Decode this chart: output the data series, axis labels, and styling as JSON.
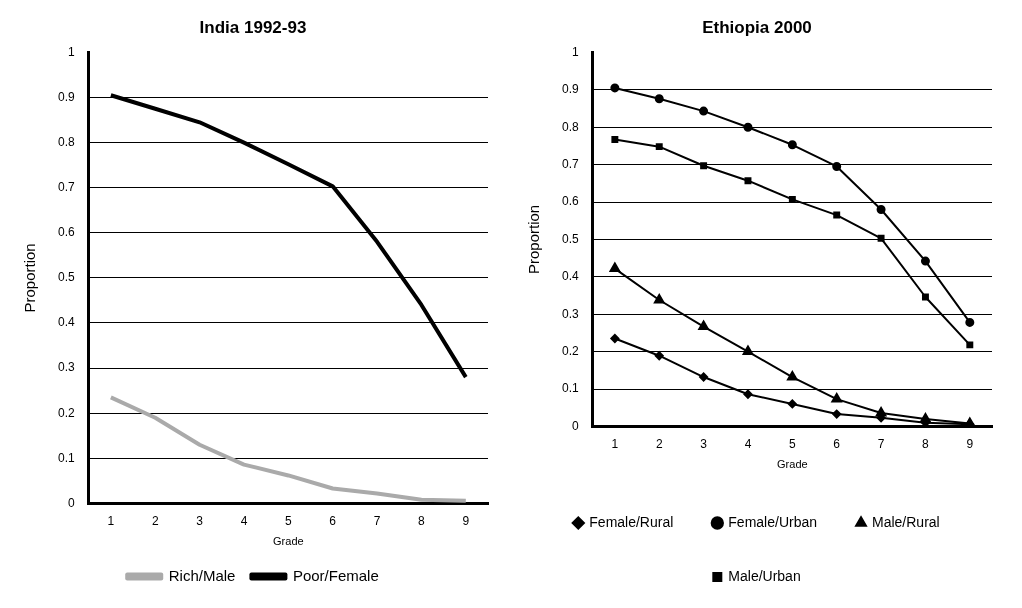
{
  "chart_data": [
    {
      "type": "line",
      "title": "India 1992-93",
      "xlabel": "Grade",
      "ylabel": "Proportion",
      "categories": [
        "1",
        "2",
        "3",
        "4",
        "5",
        "6",
        "7",
        "8",
        "9"
      ],
      "ylim": [
        0,
        1
      ],
      "yticks": [
        0,
        0.1,
        0.2,
        0.3,
        0.4,
        0.5,
        0.6,
        0.7,
        0.8,
        0.9,
        1
      ],
      "grid": "y",
      "legend": "bottom",
      "marker": "none",
      "series": [
        {
          "name": "Rich/Male",
          "color": "#aaaaaa",
          "values": [
            0.235,
            0.19,
            0.13,
            0.086,
            0.062,
            0.033,
            0.022,
            0.008,
            0.006
          ]
        },
        {
          "name": "Poor/Female",
          "color": "#000000",
          "values": [
            0.905,
            0.875,
            0.845,
            0.8,
            0.752,
            0.703,
            0.58,
            0.44,
            0.28
          ]
        }
      ]
    },
    {
      "type": "line",
      "title": "Ethiopia 2000",
      "xlabel": "Grade",
      "ylabel": "Proportion",
      "categories": [
        "1",
        "2",
        "3",
        "4",
        "5",
        "6",
        "7",
        "8",
        "9"
      ],
      "ylim": [
        0,
        1
      ],
      "yticks": [
        0,
        0.1,
        0.2,
        0.3,
        0.4,
        0.5,
        0.6,
        0.7,
        0.8,
        0.9,
        1
      ],
      "grid": "y",
      "legend": "bottom",
      "series": [
        {
          "name": "Female/Rural",
          "color": "#000000",
          "marker": "diamond",
          "values": [
            0.235,
            0.189,
            0.132,
            0.086,
            0.06,
            0.033,
            0.023,
            0.01,
            0.006
          ]
        },
        {
          "name": "Female/Urban",
          "color": "#000000",
          "marker": "circle",
          "values": [
            0.905,
            0.876,
            0.843,
            0.8,
            0.753,
            0.695,
            0.58,
            0.442,
            0.278
          ]
        },
        {
          "name": "Male/Rural",
          "color": "#000000",
          "marker": "triangle",
          "values": [
            0.422,
            0.338,
            0.267,
            0.2,
            0.132,
            0.073,
            0.036,
            0.02,
            0.008
          ]
        },
        {
          "name": "Male/Urban",
          "color": "#000000",
          "marker": "square",
          "values": [
            0.767,
            0.748,
            0.697,
            0.657,
            0.607,
            0.565,
            0.503,
            0.346,
            0.218
          ]
        }
      ]
    }
  ]
}
